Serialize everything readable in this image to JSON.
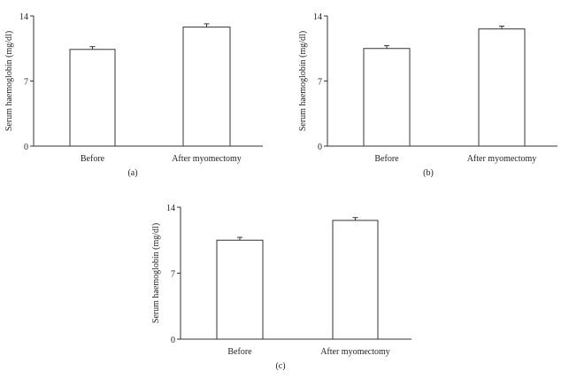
{
  "chart_data": [
    {
      "type": "bar",
      "panel_label": "(a)",
      "categories": [
        "Before",
        "After myomectomy"
      ],
      "values": [
        10.4,
        12.8
      ],
      "errors": [
        0.3,
        0.35
      ],
      "xlabel": "",
      "ylabel": "Serum haemoglobin (mg/dl)",
      "ylim": [
        0,
        14
      ],
      "yticks": [
        0,
        7,
        14
      ],
      "grid": false
    },
    {
      "type": "bar",
      "panel_label": "(b)",
      "categories": [
        "Before",
        "After myomectomy"
      ],
      "values": [
        10.5,
        12.6
      ],
      "errors": [
        0.3,
        0.3
      ],
      "xlabel": "",
      "ylabel": "Serum haemoglobin (mg/dl)",
      "ylim": [
        0,
        14
      ],
      "yticks": [
        0,
        7,
        14
      ],
      "grid": false
    },
    {
      "type": "bar",
      "panel_label": "(c)",
      "categories": [
        "Before",
        "After myomectomy"
      ],
      "values": [
        10.5,
        12.6
      ],
      "errors": [
        0.3,
        0.3
      ],
      "xlabel": "",
      "ylabel": "Serum haemoglobin (mg/dl)",
      "ylim": [
        0,
        14
      ],
      "yticks": [
        0,
        7,
        14
      ],
      "grid": false
    }
  ]
}
